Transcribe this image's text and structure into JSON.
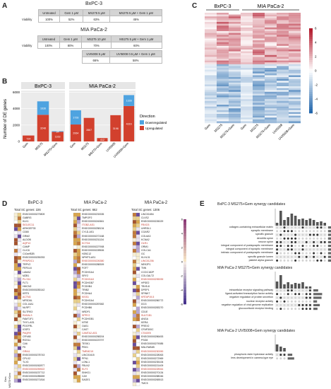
{
  "panels": {
    "A": "A",
    "B": "B",
    "C": "C",
    "D": "D",
    "E": "E"
  },
  "panel_a": {
    "bxpc3": {
      "title": "BxPC-3",
      "headers": [
        "Untreated",
        "Gem 1 μM",
        "MS275 5 μM",
        "MS275 5 μM + Gem 1 μM"
      ],
      "row_label": "Viability",
      "values": [
        "100%",
        "52%",
        "63%",
        "45%"
      ]
    },
    "mia": {
      "title": "MIA PaCa-2",
      "headers": [
        "Untreated",
        "Gem 1 μM",
        "MS275 10 μM",
        "MS275 5 μM + Gem 1 μM"
      ],
      "row_label": "Viability",
      "values": [
        "100%",
        "80%",
        "70%",
        "60%"
      ],
      "headers2": [
        "UVI5008 5 μM",
        "UVI5008 0.5 μM + Gem 1 μM"
      ],
      "values2": [
        "66%",
        "58%"
      ]
    }
  },
  "panel_b": {
    "ylabel": "Number of DE genes",
    "legend_title": "Direction",
    "legend": [
      "Downregulated",
      "Upregulated"
    ],
    "colors": {
      "down": "#4ea3e0",
      "up": "#d2402d"
    }
  },
  "chart_data": [
    {
      "type": "bar",
      "title": "BxPC-3",
      "categories": [
        "Gem",
        "MS275",
        "MS275+Gem"
      ],
      "series": [
        {
          "name": "Upregulated",
          "values": [
            724,
            3248,
            1163
          ]
        },
        {
          "name": "Downregulated",
          "values": [
            0,
            1636,
            84
          ]
        }
      ],
      "ylabel": "Number of DE genes",
      "yticks": [
        0,
        2000,
        4000,
        6000
      ],
      "ylim": [
        0,
        6200
      ]
    },
    {
      "type": "bar",
      "title": "MIA PaCa-2",
      "categories": [
        "Gem",
        "MS275",
        "MS275+Gem",
        "UVI5008",
        "UVI5008+Gem"
      ],
      "series": [
        {
          "name": "Upregulated",
          "values": [
            2064,
            2867,
            412,
            3198,
            4316
          ]
        },
        {
          "name": "Downregulated",
          "values": [
            1728,
            0,
            0,
            0,
            1328
          ]
        }
      ],
      "ylabel": "Number of DE genes",
      "yticks": [
        0,
        2000,
        4000,
        6000
      ],
      "ylim": [
        0,
        6200
      ]
    },
    {
      "type": "heatmap",
      "groups": [
        "BxPC-3",
        "MIA PaCa-2"
      ],
      "columns": [
        "Gem",
        "MS275",
        "MS275+Gem",
        "Gem",
        "MS275",
        "MS275+Gem",
        "UVI5008",
        "UVI5008+Gem"
      ],
      "colorbar_ticks": [
        6,
        4,
        2,
        0,
        -2,
        -4,
        -6
      ]
    }
  ],
  "panel_d": {
    "c1": {
      "title": "BxPC-3",
      "total": "Total SC genes: 226",
      "genes": [
        "ENSG00000279809",
        "GABRG",
        "KLK1",
        "SIGLEC11",
        "ARHGEF33",
        "CD80",
        "GRM2",
        "ALDOB",
        "AQP10",
        "CAMP",
        "CLIC6",
        "C10orf82B",
        "ENSG00000259253",
        "PPAPDC1",
        "TRPV2",
        "FER1L6",
        "LAMA2",
        "MZB1",
        "PLCD4",
        "FLT1",
        "HMCN2",
        "ENSG00000283142",
        "KRT5",
        "ACTN3",
        "MFSD6L",
        "COL14A1",
        "NLRP7",
        "SLITRK3",
        "RASAL3",
        "FAM71F1",
        "THY1-AS1",
        "PDGFRL",
        "IGSF3",
        "PAQR9",
        "CRYAB",
        "RGS11",
        "CA6",
        "F5",
        "GRIA1",
        "ENSG00000278743",
        "CPLX2",
        "TLX3",
        "ENSG00000262877",
        "ENSG00000259522",
        "ENSG00000237712",
        "ENSG00000285659",
        "ENSG00000271816"
      ]
    },
    "c2": {
      "title": "MIA PaCa-2",
      "total": "Total SC genes: 662",
      "genes": [
        "ENSG00000233335",
        "TMPOP2",
        "ENSG00000240661",
        "ITGB2-AS1",
        "ENSG00000258134",
        "CYLD-AS1",
        "ENSG00000272168",
        "ENSG00000231134",
        "KCTD4",
        "ENSG00000227908",
        "ENSG00000228506",
        "H2BC12",
        "NPHP3-AS1",
        "ENSG00000226380",
        "ENSG00000288309",
        "FGF7",
        "PCDHGA4",
        "SRY2",
        "PCDHGA3",
        "PCDHGB7",
        "PCDHB4",
        "TRIB2",
        "PCDHA4",
        "KISS1",
        "PCDHGA4",
        "ENSG00000287682",
        "PCDHB6",
        "NRDF1",
        "SPRY2",
        "PCDHGB1",
        "NT5E",
        "OAS1",
        "CAS7",
        "CAMTA2-AS1",
        "ENSG00000258204",
        "ENSG00000223797",
        "TESK1",
        "PBX1",
        "TMEM219",
        "LINC01615",
        "PFN1",
        "LONL1",
        "FBLN2",
        "ELF3",
        "SNHG1",
        "CA9",
        "SAGE1"
      ]
    },
    "c3": {
      "title": "MIA PaCa-2",
      "total": "Total SC genes: 1306",
      "genes": [
        "LINC01654",
        "CLVS2",
        "ENSG00000226029",
        "FBXO3",
        "UHRDL1",
        "CGAR2",
        "COL6A3",
        "KCNA2",
        "OLR1",
        "ORM1",
        "COLCA1",
        "GC",
        "KLHL31",
        "LINC01206",
        "NEK2P1",
        "TNN",
        "CCDC182P",
        "COLGALT2",
        "ENSG00000295939",
        "HPSE2",
        "TBX5-8",
        "DPEP1",
        "SPINK7",
        "KRTAP19-5",
        "ENSG00000286772",
        "DCG",
        "ENSG00000283270",
        "CD1E",
        "SULT1B1",
        "ANGA",
        "KERA",
        "PREX2",
        "CFAP300C",
        "CTAGE5",
        "ENSG00000286453",
        "PSG8",
        "ENSG00000279085",
        "MIA-RAB4B",
        "ENSG00000230090",
        "ENSG00000228063",
        "ENSG00000272969",
        "ENSG00000235106",
        "ENSG00000221409",
        "ENSG00000228944",
        "ENSG00000270134",
        "ENSG00000288046",
        "ENSG00000265513",
        "TMC5"
      ]
    },
    "colorbar_ticks": [
      "6",
      "4",
      "2",
      "0",
      "-2",
      "-4",
      "-6"
    ],
    "col_labels": [
      "Gem",
      "MS275+Gem"
    ]
  },
  "panel_e": {
    "e1": {
      "title": "BxPC-3 MS275+Gem synergy candidates",
      "terms": [
        "collagen-containing extracellular matrix",
        "synaptic membrane",
        "specific granule",
        "dendritic spine",
        "neuron spine",
        "integral component of postsynaptic membrane",
        "integral component of synaptic membrane",
        "intrinsic component of postsynaptic membrane",
        "specific granule lumen",
        "platelet alpha granule"
      ]
    },
    "e2": {
      "title": "MIA PaCa-2 MS275+Gem synergy candidates",
      "terms": [
        "intracellular receptor signaling pathway",
        "ligand-activated transcription factor activity",
        "negative regulation of protein secretion",
        "nuclear receptor activity",
        "negative regulation of viral genome replication",
        "glucocorticoid receptor binding"
      ]
    },
    "e3": {
      "title": "MIA PaCa-2 UVI5008+Gem synergy candidates",
      "terms": [
        "phosphoric ester hydrolase activity",
        "lens development in camera-type eye"
      ]
    }
  }
}
